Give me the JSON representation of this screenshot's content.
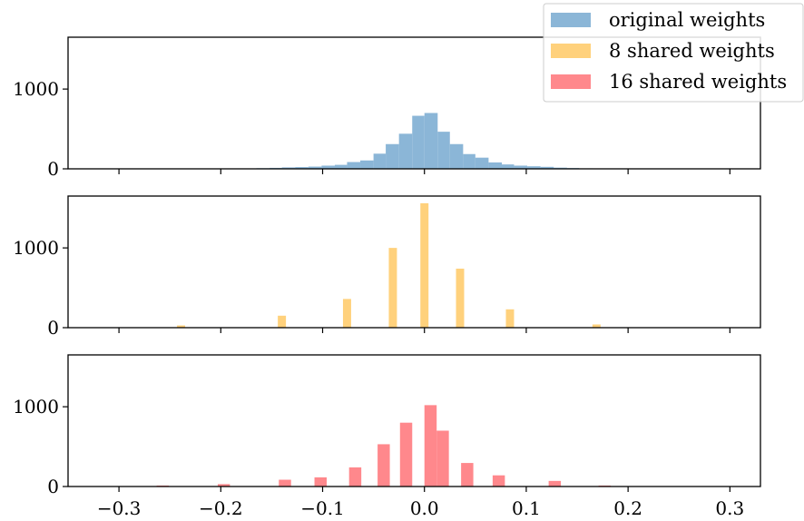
{
  "chart_data": [
    {
      "type": "bar",
      "panel": "top",
      "series": [
        {
          "name": "original weights",
          "color": "#7eaed3",
          "bins": [
            {
              "x0": -0.165,
              "x1": -0.152,
              "value": 8
            },
            {
              "x0": -0.152,
              "x1": -0.14,
              "value": 12
            },
            {
              "x0": -0.14,
              "x1": -0.127,
              "value": 18
            },
            {
              "x0": -0.127,
              "x1": -0.114,
              "value": 22
            },
            {
              "x0": -0.114,
              "x1": -0.101,
              "value": 28
            },
            {
              "x0": -0.101,
              "x1": -0.088,
              "value": 40
            },
            {
              "x0": -0.088,
              "x1": -0.076,
              "value": 50
            },
            {
              "x0": -0.076,
              "x1": -0.063,
              "value": 85
            },
            {
              "x0": -0.063,
              "x1": -0.05,
              "value": 105
            },
            {
              "x0": -0.05,
              "x1": -0.038,
              "value": 190
            },
            {
              "x0": -0.038,
              "x1": -0.025,
              "value": 310
            },
            {
              "x0": -0.025,
              "x1": -0.012,
              "value": 440
            },
            {
              "x0": -0.012,
              "x1": 0.0,
              "value": 665
            },
            {
              "x0": 0.0,
              "x1": 0.013,
              "value": 700
            },
            {
              "x0": 0.013,
              "x1": 0.025,
              "value": 465
            },
            {
              "x0": 0.025,
              "x1": 0.038,
              "value": 310
            },
            {
              "x0": 0.038,
              "x1": 0.05,
              "value": 185
            },
            {
              "x0": 0.05,
              "x1": 0.063,
              "value": 140
            },
            {
              "x0": 0.063,
              "x1": 0.076,
              "value": 80
            },
            {
              "x0": 0.076,
              "x1": 0.088,
              "value": 55
            },
            {
              "x0": 0.088,
              "x1": 0.101,
              "value": 40
            },
            {
              "x0": 0.101,
              "x1": 0.114,
              "value": 32
            },
            {
              "x0": 0.114,
              "x1": 0.127,
              "value": 25
            },
            {
              "x0": 0.127,
              "x1": 0.14,
              "value": 15
            },
            {
              "x0": 0.14,
              "x1": 0.152,
              "value": 10
            },
            {
              "x0": 0.152,
              "x1": 0.165,
              "value": 6
            }
          ]
        }
      ],
      "xlim": [
        -0.35,
        0.33
      ],
      "ylim": [
        0,
        1650
      ],
      "yticks": [
        {
          "value": 0,
          "label": "0"
        },
        {
          "value": 1000,
          "label": "1000"
        }
      ],
      "xticks": [
        -0.3,
        -0.2,
        -0.1,
        0.0,
        0.1,
        0.2,
        0.3
      ],
      "grid": false
    },
    {
      "type": "bar",
      "panel": "middle",
      "series": [
        {
          "name": "8 shared weights",
          "color": "#ffcc6e",
          "bins": [
            {
              "x0": -0.243,
              "x1": -0.235,
              "value": 28
            },
            {
              "x0": -0.144,
              "x1": -0.136,
              "value": 150
            },
            {
              "x0": -0.08,
              "x1": -0.072,
              "value": 360
            },
            {
              "x0": -0.035,
              "x1": -0.027,
              "value": 1000
            },
            {
              "x0": -0.004,
              "x1": 0.004,
              "value": 1560
            },
            {
              "x0": 0.031,
              "x1": 0.039,
              "value": 740
            },
            {
              "x0": 0.08,
              "x1": 0.088,
              "value": 230
            },
            {
              "x0": 0.165,
              "x1": 0.173,
              "value": 40
            }
          ]
        }
      ],
      "xlim": [
        -0.35,
        0.33
      ],
      "ylim": [
        0,
        1650
      ],
      "yticks": [
        {
          "value": 0,
          "label": "0"
        },
        {
          "value": 1000,
          "label": "1000"
        }
      ],
      "xticks": [
        -0.3,
        -0.2,
        -0.1,
        0.0,
        0.1,
        0.2,
        0.3
      ],
      "grid": false
    },
    {
      "type": "bar",
      "panel": "bottom",
      "series": [
        {
          "name": "16 shared weights",
          "color": "#ff7b7f",
          "bins": [
            {
              "x0": -0.263,
              "x1": -0.251,
              "value": 12
            },
            {
              "x0": -0.203,
              "x1": -0.191,
              "value": 30
            },
            {
              "x0": -0.143,
              "x1": -0.131,
              "value": 85
            },
            {
              "x0": -0.108,
              "x1": -0.096,
              "value": 115
            },
            {
              "x0": -0.074,
              "x1": -0.062,
              "value": 240
            },
            {
              "x0": -0.046,
              "x1": -0.034,
              "value": 530
            },
            {
              "x0": -0.024,
              "x1": -0.012,
              "value": 800
            },
            {
              "x0": 0.0,
              "x1": 0.012,
              "value": 1020
            },
            {
              "x0": 0.012,
              "x1": 0.024,
              "value": 700
            },
            {
              "x0": 0.036,
              "x1": 0.048,
              "value": 295
            },
            {
              "x0": 0.067,
              "x1": 0.079,
              "value": 140
            },
            {
              "x0": 0.122,
              "x1": 0.134,
              "value": 70
            },
            {
              "x0": 0.171,
              "x1": 0.183,
              "value": 12
            }
          ]
        }
      ],
      "xlim": [
        -0.35,
        0.33
      ],
      "ylim": [
        0,
        1650
      ],
      "yticks": [
        {
          "value": 0,
          "label": "0"
        },
        {
          "value": 1000,
          "label": "1000"
        }
      ],
      "xticks": [
        -0.3,
        -0.2,
        -0.1,
        0.0,
        0.1,
        0.2,
        0.3
      ],
      "xticklabels": [
        "−0.3",
        "−0.2",
        "−0.1",
        "0.0",
        "0.1",
        "0.2",
        "0.3"
      ],
      "grid": false
    }
  ],
  "legend": {
    "placement": "top-right",
    "entries": [
      {
        "label": "original weights",
        "color": "#7eaed3"
      },
      {
        "label": "8 shared weights",
        "color": "#ffcc6e"
      },
      {
        "label": "16 shared weights",
        "color": "#ff7b7f"
      }
    ]
  }
}
